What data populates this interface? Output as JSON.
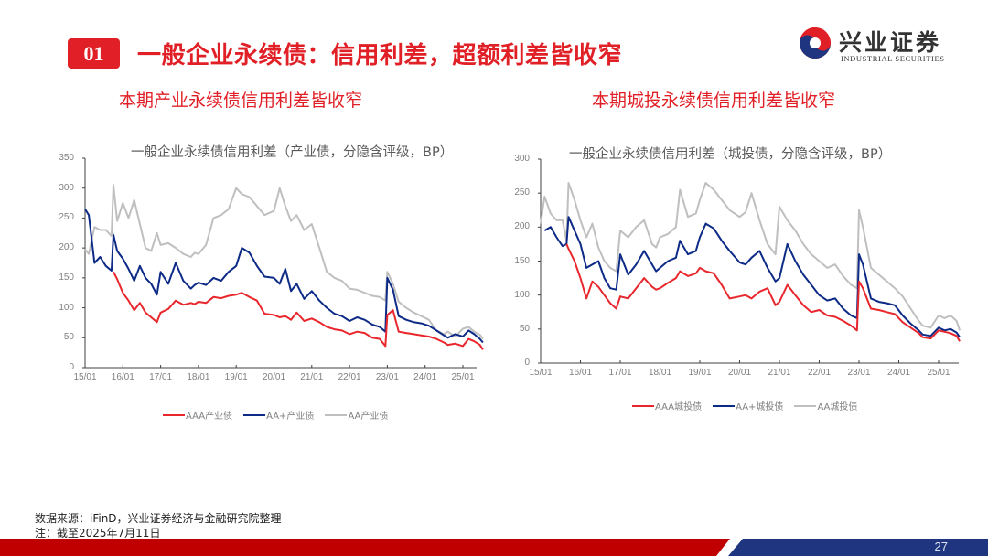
{
  "header": {
    "badge": "01",
    "title": "一般企业永续债：信用利差，超额利差皆收窄",
    "logo_cn": "兴业证券",
    "logo_en": "INDUSTRIAL SECURITIES"
  },
  "panels": [
    {
      "subtitle": "本期产业永续债信用利差皆收窄"
    },
    {
      "subtitle": "本期城投永续债信用利差皆收窄"
    }
  ],
  "colors": {
    "accent_red": "#e02026",
    "aaa": "#e8262c",
    "aa_plus": "#0c2a86",
    "aa": "#bfbfbf",
    "bar_red": "#c00000",
    "bar_blue": "#1f3580"
  },
  "footer": {
    "source": "数据来源：iFinD，兴业证券经济与金融研究院整理",
    "note": "注：截至2025年7月11日",
    "page": "27"
  },
  "chart_data": [
    {
      "type": "line",
      "title": "一般企业永续债信用利差（产业债，分隐含评级，BP）",
      "xlabel": "",
      "ylabel": "BP",
      "ylim": [
        0,
        350
      ],
      "yticks": [
        0,
        50,
        100,
        150,
        200,
        250,
        300,
        350
      ],
      "xticks": [
        "15/01",
        "16/01",
        "17/01",
        "18/01",
        "19/01",
        "20/01",
        "21/01",
        "22/01",
        "23/01",
        "24/01",
        "25/01"
      ],
      "grid": false,
      "legend_position": "bottom",
      "x": [
        2015.0,
        2015.1,
        2015.25,
        2015.4,
        2015.55,
        2015.7,
        2015.75,
        2015.85,
        2016.0,
        2016.15,
        2016.3,
        2016.45,
        2016.6,
        2016.75,
        2016.9,
        2017.0,
        2017.2,
        2017.4,
        2017.6,
        2017.8,
        2017.9,
        2018.0,
        2018.2,
        2018.4,
        2018.6,
        2018.8,
        2019.0,
        2019.15,
        2019.35,
        2019.55,
        2019.75,
        2020.0,
        2020.15,
        2020.3,
        2020.45,
        2020.6,
        2020.8,
        2021.0,
        2021.2,
        2021.4,
        2021.6,
        2021.8,
        2022.0,
        2022.2,
        2022.4,
        2022.6,
        2022.8,
        2022.95,
        2023.0,
        2023.15,
        2023.3,
        2023.5,
        2023.7,
        2023.9,
        2024.1,
        2024.3,
        2024.5,
        2024.6,
        2024.8,
        2025.0,
        2025.15,
        2025.3,
        2025.45,
        2025.53
      ],
      "series": [
        {
          "name": "AAA产业债",
          "color": "#e8262c",
          "values": [
            null,
            null,
            null,
            null,
            null,
            null,
            160,
            148,
            125,
            112,
            96,
            108,
            92,
            84,
            76,
            92,
            98,
            112,
            105,
            108,
            106,
            110,
            108,
            118,
            116,
            120,
            122,
            125,
            118,
            112,
            90,
            88,
            84,
            86,
            80,
            92,
            78,
            82,
            76,
            68,
            64,
            62,
            56,
            60,
            58,
            50,
            48,
            36,
            88,
            96,
            60,
            58,
            56,
            54,
            52,
            48,
            42,
            38,
            40,
            36,
            48,
            44,
            38,
            30
          ]
        },
        {
          "name": "AA+产业债",
          "color": "#0c2a86",
          "values": [
            265,
            255,
            175,
            185,
            170,
            162,
            222,
            195,
            182,
            165,
            145,
            170,
            150,
            140,
            122,
            160,
            140,
            175,
            145,
            132,
            138,
            142,
            138,
            150,
            145,
            160,
            170,
            200,
            192,
            170,
            152,
            150,
            140,
            165,
            128,
            140,
            115,
            128,
            112,
            100,
            90,
            86,
            78,
            84,
            80,
            72,
            68,
            60,
            150,
            130,
            86,
            80,
            76,
            74,
            70,
            62,
            54,
            50,
            56,
            52,
            62,
            56,
            48,
            42
          ]
        },
        {
          "name": "AA产业债",
          "color": "#bfbfbf",
          "values": [
            198,
            190,
            235,
            230,
            230,
            220,
            305,
            245,
            275,
            250,
            280,
            240,
            200,
            195,
            225,
            205,
            208,
            200,
            190,
            185,
            192,
            190,
            205,
            250,
            255,
            265,
            300,
            290,
            285,
            270,
            255,
            262,
            300,
            270,
            245,
            255,
            230,
            240,
            200,
            160,
            150,
            145,
            132,
            130,
            125,
            120,
            118,
            112,
            160,
            140,
            110,
            100,
            92,
            86,
            80,
            62,
            56,
            60,
            52,
            65,
            68,
            60,
            55,
            48
          ]
        }
      ]
    },
    {
      "type": "line",
      "title": "一般企业永续债信用利差（城投债，分隐含评级，BP）",
      "xlabel": "",
      "ylabel": "BP",
      "ylim": [
        0,
        300
      ],
      "yticks": [
        0,
        50,
        100,
        150,
        200,
        250,
        300
      ],
      "xticks": [
        "15/01",
        "16/01",
        "17/01",
        "18/01",
        "19/01",
        "20/01",
        "21/01",
        "22/01",
        "23/01",
        "24/01",
        "25/01"
      ],
      "grid": false,
      "legend_position": "bottom",
      "x": [
        2015.0,
        2015.1,
        2015.25,
        2015.4,
        2015.55,
        2015.65,
        2015.7,
        2015.85,
        2016.0,
        2016.15,
        2016.3,
        2016.45,
        2016.6,
        2016.75,
        2016.9,
        2017.0,
        2017.2,
        2017.4,
        2017.6,
        2017.8,
        2017.9,
        2018.0,
        2018.2,
        2018.4,
        2018.5,
        2018.7,
        2018.9,
        2019.0,
        2019.15,
        2019.35,
        2019.55,
        2019.75,
        2020.0,
        2020.15,
        2020.3,
        2020.5,
        2020.7,
        2020.9,
        2021.0,
        2021.2,
        2021.4,
        2021.6,
        2021.8,
        2022.0,
        2022.2,
        2022.4,
        2022.6,
        2022.8,
        2022.95,
        2023.0,
        2023.1,
        2023.3,
        2023.5,
        2023.7,
        2023.9,
        2024.1,
        2024.3,
        2024.5,
        2024.6,
        2024.8,
        2025.0,
        2025.15,
        2025.3,
        2025.45,
        2025.53
      ],
      "series": [
        {
          "name": "AAA城投债",
          "color": "#e8262c",
          "values": [
            null,
            null,
            null,
            null,
            null,
            175,
            168,
            150,
            125,
            95,
            120,
            112,
            100,
            88,
            80,
            98,
            95,
            110,
            125,
            112,
            108,
            110,
            118,
            125,
            135,
            128,
            132,
            140,
            135,
            132,
            115,
            95,
            98,
            100,
            95,
            105,
            110,
            85,
            90,
            115,
            100,
            85,
            75,
            78,
            70,
            68,
            62,
            55,
            48,
            120,
            110,
            80,
            78,
            75,
            72,
            60,
            52,
            44,
            38,
            36,
            48,
            46,
            44,
            40,
            32
          ]
        },
        {
          "name": "AA+城投债",
          "color": "#0c2a86",
          "values": [
            null,
            195,
            200,
            185,
            172,
            175,
            215,
            195,
            175,
            140,
            145,
            150,
            125,
            110,
            108,
            160,
            130,
            145,
            165,
            145,
            135,
            140,
            150,
            155,
            180,
            160,
            165,
            185,
            205,
            198,
            180,
            165,
            148,
            145,
            155,
            165,
            140,
            120,
            125,
            175,
            150,
            130,
            115,
            100,
            92,
            95,
            80,
            70,
            66,
            160,
            145,
            95,
            90,
            88,
            85,
            70,
            58,
            48,
            42,
            40,
            52,
            48,
            50,
            45,
            38
          ]
        },
        {
          "name": "AA城投债",
          "color": "#bfbfbf",
          "values": [
            205,
            245,
            220,
            210,
            210,
            180,
            265,
            240,
            210,
            185,
            205,
            170,
            150,
            140,
            135,
            195,
            185,
            200,
            210,
            175,
            170,
            185,
            190,
            200,
            255,
            215,
            220,
            240,
            265,
            255,
            240,
            225,
            215,
            222,
            250,
            210,
            175,
            160,
            230,
            210,
            195,
            175,
            160,
            150,
            140,
            145,
            128,
            115,
            110,
            225,
            200,
            140,
            130,
            120,
            110,
            98,
            80,
            62,
            55,
            52,
            70,
            66,
            70,
            62,
            48
          ]
        }
      ]
    }
  ]
}
